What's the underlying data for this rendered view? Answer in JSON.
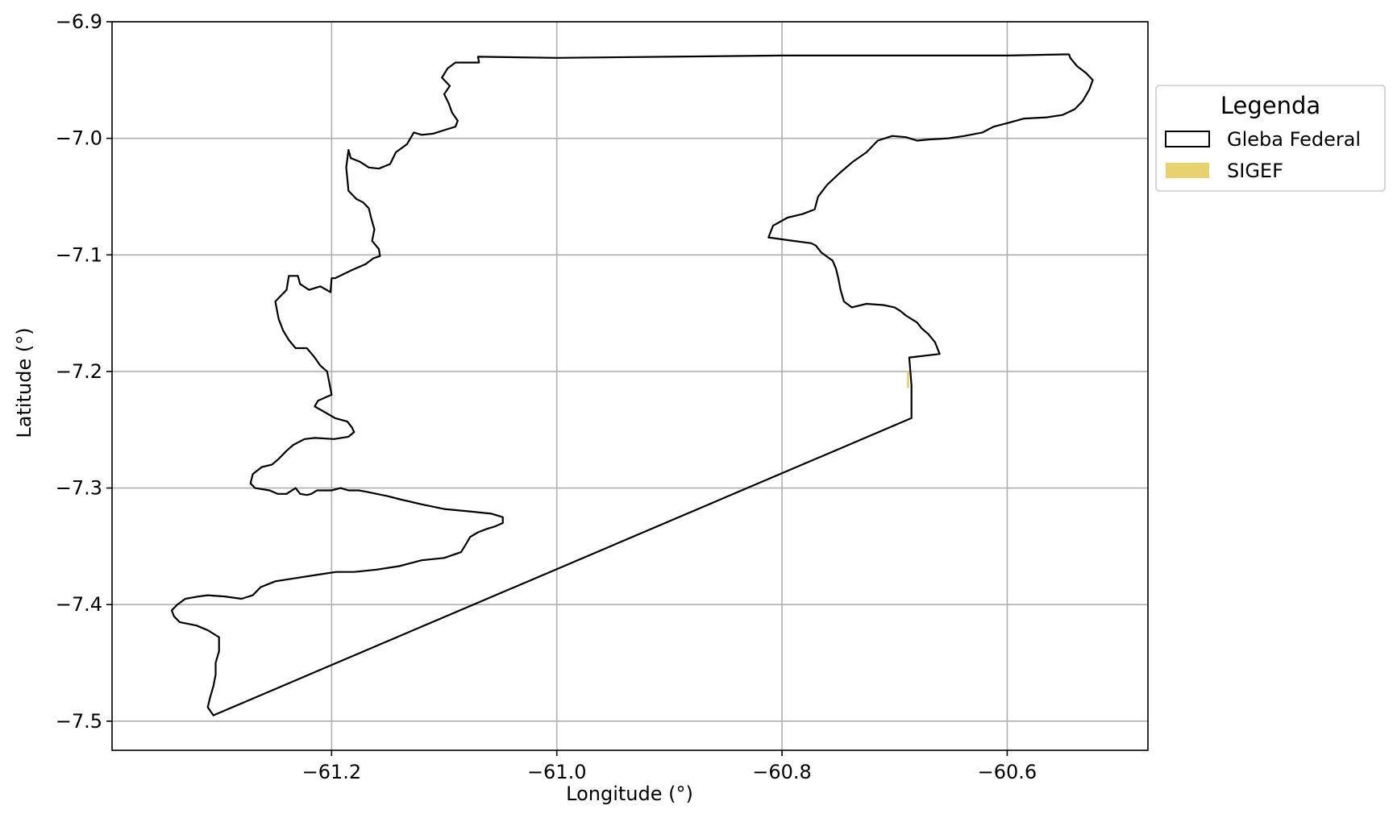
{
  "map": {
    "xlabel": "Longitude (°)",
    "ylabel": "Latitude (°)",
    "xlim": [
      -61.395,
      -60.475
    ],
    "ylim": [
      -7.525,
      -6.9
    ],
    "grid": true,
    "x_ticks": [
      {
        "value": -61.2,
        "label": "−61.2"
      },
      {
        "value": -61.0,
        "label": "−61.0"
      },
      {
        "value": -60.8,
        "label": "−60.8"
      },
      {
        "value": -60.6,
        "label": "−60.6"
      }
    ],
    "y_ticks": [
      {
        "value": -6.9,
        "label": "−6.9"
      },
      {
        "value": -7.0,
        "label": "−7.0"
      },
      {
        "value": -7.1,
        "label": "−7.1"
      },
      {
        "value": -7.2,
        "label": "−7.2"
      },
      {
        "value": -7.3,
        "label": "−7.3"
      },
      {
        "value": -7.4,
        "label": "−7.4"
      },
      {
        "value": -7.5,
        "label": "−7.5"
      }
    ],
    "legend": {
      "title": "Legenda",
      "placement": "outside-top-right",
      "items": [
        {
          "label": "Gleba Federal",
          "style": "outline",
          "color": "#000000"
        },
        {
          "label": "SIGEF",
          "style": "fill",
          "color": "#e8d26f"
        }
      ]
    },
    "layers": {
      "gleba_federal": {
        "edge_color": "#000000",
        "fill": "none",
        "polygon": [
          [
            -61.07,
            -6.93
          ],
          [
            -61.069,
            -6.935
          ],
          [
            -61.09,
            -6.935
          ],
          [
            -61.097,
            -6.94
          ],
          [
            -61.102,
            -6.948
          ],
          [
            -61.095,
            -6.955
          ],
          [
            -61.1,
            -6.962
          ],
          [
            -61.096,
            -6.97
          ],
          [
            -61.093,
            -6.978
          ],
          [
            -61.088,
            -6.985
          ],
          [
            -61.09,
            -6.99
          ],
          [
            -61.1,
            -6.993
          ],
          [
            -61.11,
            -6.996
          ],
          [
            -61.12,
            -6.997
          ],
          [
            -61.127,
            -6.995
          ],
          [
            -61.133,
            -7.005
          ],
          [
            -61.143,
            -7.012
          ],
          [
            -61.148,
            -7.022
          ],
          [
            -61.158,
            -7.026
          ],
          [
            -61.167,
            -7.025
          ],
          [
            -61.175,
            -7.02
          ],
          [
            -61.183,
            -7.017
          ],
          [
            -61.185,
            -7.01
          ],
          [
            -61.187,
            -7.025
          ],
          [
            -61.185,
            -7.045
          ],
          [
            -61.178,
            -7.052
          ],
          [
            -61.172,
            -7.055
          ],
          [
            -61.167,
            -7.06
          ],
          [
            -61.165,
            -7.068
          ],
          [
            -61.162,
            -7.078
          ],
          [
            -61.164,
            -7.088
          ],
          [
            -61.158,
            -7.095
          ],
          [
            -61.157,
            -7.101
          ],
          [
            -61.163,
            -7.103
          ],
          [
            -61.17,
            -7.108
          ],
          [
            -61.182,
            -7.113
          ],
          [
            -61.197,
            -7.12
          ],
          [
            -61.2,
            -7.12
          ],
          [
            -61.201,
            -7.132
          ],
          [
            -61.21,
            -7.127
          ],
          [
            -61.22,
            -7.13
          ],
          [
            -61.228,
            -7.125
          ],
          [
            -61.23,
            -7.118
          ],
          [
            -61.238,
            -7.118
          ],
          [
            -61.24,
            -7.13
          ],
          [
            -61.245,
            -7.135
          ],
          [
            -61.25,
            -7.14
          ],
          [
            -61.247,
            -7.155
          ],
          [
            -61.243,
            -7.165
          ],
          [
            -61.238,
            -7.173
          ],
          [
            -61.232,
            -7.18
          ],
          [
            -61.222,
            -7.18
          ],
          [
            -61.215,
            -7.188
          ],
          [
            -61.21,
            -7.195
          ],
          [
            -61.204,
            -7.2
          ],
          [
            -61.202,
            -7.21
          ],
          [
            -61.2,
            -7.22
          ],
          [
            -61.212,
            -7.225
          ],
          [
            -61.215,
            -7.23
          ],
          [
            -61.206,
            -7.235
          ],
          [
            -61.197,
            -7.24
          ],
          [
            -61.186,
            -7.243
          ],
          [
            -61.182,
            -7.248
          ],
          [
            -61.18,
            -7.252
          ],
          [
            -61.185,
            -7.256
          ],
          [
            -61.198,
            -7.258
          ],
          [
            -61.215,
            -7.257
          ],
          [
            -61.224,
            -7.258
          ],
          [
            -61.234,
            -7.263
          ],
          [
            -61.24,
            -7.268
          ],
          [
            -61.247,
            -7.275
          ],
          [
            -61.253,
            -7.28
          ],
          [
            -61.262,
            -7.282
          ],
          [
            -61.27,
            -7.288
          ],
          [
            -61.272,
            -7.296
          ],
          [
            -61.268,
            -7.3
          ],
          [
            -61.255,
            -7.302
          ],
          [
            -61.248,
            -7.305
          ],
          [
            -61.24,
            -7.305
          ],
          [
            -61.232,
            -7.3
          ],
          [
            -61.228,
            -7.305
          ],
          [
            -61.222,
            -7.306
          ],
          [
            -61.218,
            -7.305
          ],
          [
            -61.213,
            -7.302
          ],
          [
            -61.206,
            -7.302
          ],
          [
            -61.2,
            -7.302
          ],
          [
            -61.192,
            -7.3
          ],
          [
            -61.185,
            -7.302
          ],
          [
            -61.176,
            -7.302
          ],
          [
            -61.17,
            -7.303
          ],
          [
            -61.16,
            -7.305
          ],
          [
            -61.15,
            -7.307
          ],
          [
            -61.138,
            -7.31
          ],
          [
            -61.12,
            -7.314
          ],
          [
            -61.1,
            -7.318
          ],
          [
            -61.078,
            -7.32
          ],
          [
            -61.058,
            -7.322
          ],
          [
            -61.048,
            -7.325
          ],
          [
            -61.048,
            -7.33
          ],
          [
            -61.055,
            -7.333
          ],
          [
            -61.062,
            -7.335
          ],
          [
            -61.07,
            -7.338
          ],
          [
            -61.077,
            -7.342
          ],
          [
            -61.08,
            -7.347
          ],
          [
            -61.085,
            -7.355
          ],
          [
            -61.1,
            -7.36
          ],
          [
            -61.12,
            -7.362
          ],
          [
            -61.14,
            -7.367
          ],
          [
            -61.16,
            -7.37
          ],
          [
            -61.18,
            -7.372
          ],
          [
            -61.196,
            -7.372
          ],
          [
            -61.21,
            -7.374
          ],
          [
            -61.23,
            -7.377
          ],
          [
            -61.25,
            -7.38
          ],
          [
            -61.263,
            -7.385
          ],
          [
            -61.27,
            -7.392
          ],
          [
            -61.28,
            -7.395
          ],
          [
            -61.295,
            -7.393
          ],
          [
            -61.31,
            -7.392
          ],
          [
            -61.318,
            -7.393
          ],
          [
            -61.33,
            -7.395
          ],
          [
            -61.337,
            -7.4
          ],
          [
            -61.342,
            -7.405
          ],
          [
            -61.34,
            -7.41
          ],
          [
            -61.335,
            -7.415
          ],
          [
            -61.32,
            -7.418
          ],
          [
            -61.31,
            -7.422
          ],
          [
            -61.3,
            -7.428
          ],
          [
            -61.3,
            -7.44
          ],
          [
            -61.303,
            -7.45
          ],
          [
            -61.303,
            -7.46
          ],
          [
            -61.305,
            -7.47
          ],
          [
            -61.308,
            -7.48
          ],
          [
            -61.31,
            -7.488
          ],
          [
            -61.305,
            -7.495
          ],
          [
            -60.685,
            -7.24
          ],
          [
            -60.685,
            -7.212
          ],
          [
            -60.687,
            -7.188
          ],
          [
            -60.66,
            -7.185
          ],
          [
            -60.664,
            -7.175
          ],
          [
            -60.67,
            -7.168
          ],
          [
            -60.676,
            -7.163
          ],
          [
            -60.68,
            -7.158
          ],
          [
            -60.685,
            -7.155
          ],
          [
            -60.69,
            -7.152
          ],
          [
            -60.695,
            -7.148
          ],
          [
            -60.7,
            -7.145
          ],
          [
            -60.71,
            -7.143
          ],
          [
            -60.725,
            -7.142
          ],
          [
            -60.738,
            -7.145
          ],
          [
            -60.745,
            -7.14
          ],
          [
            -60.748,
            -7.13
          ],
          [
            -60.75,
            -7.12
          ],
          [
            -60.752,
            -7.112
          ],
          [
            -60.755,
            -7.105
          ],
          [
            -60.765,
            -7.098
          ],
          [
            -60.77,
            -7.092
          ],
          [
            -60.774,
            -7.09
          ],
          [
            -60.79,
            -7.088
          ],
          [
            -60.812,
            -7.085
          ],
          [
            -60.808,
            -7.075
          ],
          [
            -60.795,
            -7.068
          ],
          [
            -60.782,
            -7.065
          ],
          [
            -60.771,
            -7.061
          ],
          [
            -60.768,
            -7.05
          ],
          [
            -60.76,
            -7.04
          ],
          [
            -60.749,
            -7.03
          ],
          [
            -60.737,
            -7.02
          ],
          [
            -60.725,
            -7.012
          ],
          [
            -60.715,
            -7.002
          ],
          [
            -60.702,
            -6.998
          ],
          [
            -60.69,
            -6.999
          ],
          [
            -60.68,
            -7.002
          ],
          [
            -60.67,
            -7.001
          ],
          [
            -60.652,
            -7.0
          ],
          [
            -60.638,
            -6.998
          ],
          [
            -60.622,
            -6.995
          ],
          [
            -60.612,
            -6.99
          ],
          [
            -60.6,
            -6.987
          ],
          [
            -60.585,
            -6.983
          ],
          [
            -60.565,
            -6.982
          ],
          [
            -60.551,
            -6.98
          ],
          [
            -60.54,
            -6.975
          ],
          [
            -60.533,
            -6.968
          ],
          [
            -60.527,
            -6.958
          ],
          [
            -60.524,
            -6.95
          ],
          [
            -60.53,
            -6.944
          ],
          [
            -60.538,
            -6.938
          ],
          [
            -60.544,
            -6.931
          ],
          [
            -60.545,
            -6.928
          ],
          [
            -60.55,
            -6.928
          ],
          [
            -60.6,
            -6.929
          ],
          [
            -60.7,
            -6.929
          ],
          [
            -60.8,
            -6.929
          ],
          [
            -60.9,
            -6.93
          ],
          [
            -61.0,
            -6.931
          ],
          [
            -61.07,
            -6.93
          ]
        ]
      },
      "sigef": {
        "color": "#e8d26f",
        "polygon": [
          [
            -60.689,
            -7.2
          ],
          [
            -60.687,
            -7.2
          ],
          [
            -60.687,
            -7.214
          ],
          [
            -60.689,
            -7.214
          ]
        ]
      }
    }
  }
}
